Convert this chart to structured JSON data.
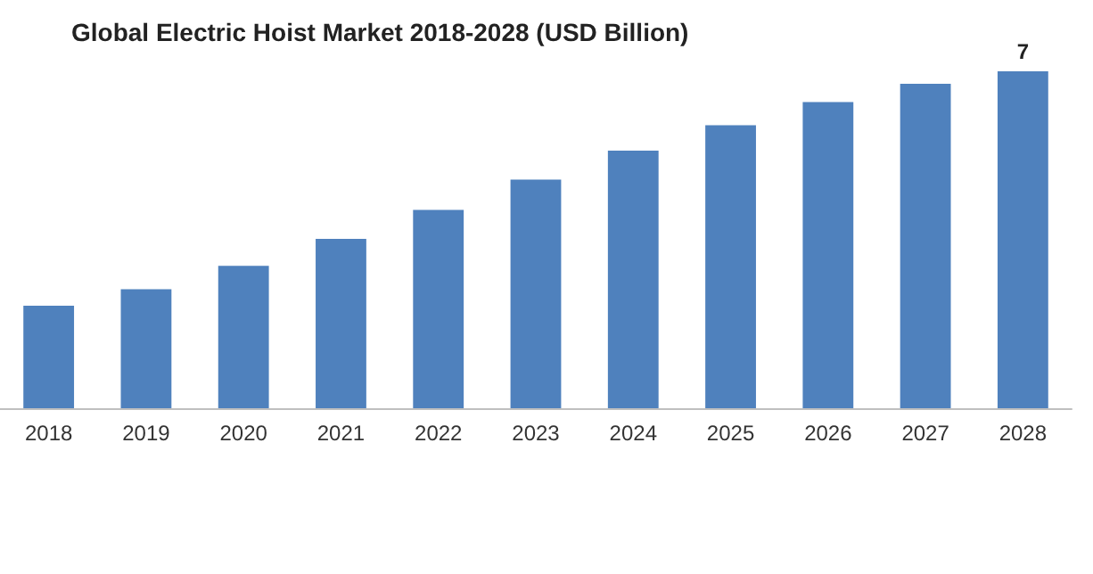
{
  "chart_data": {
    "type": "bar",
    "title": "Global Electric Hoist Market 2018-2028 (USD Billion)",
    "categories": [
      "2018",
      "2019",
      "2020",
      "2021",
      "2022",
      "2023",
      "2024",
      "2025",
      "2026",
      "2027",
      "2028"
    ],
    "values": [
      2.13,
      2.47,
      2.96,
      3.52,
      4.12,
      4.75,
      5.35,
      5.88,
      6.36,
      6.74,
      7
    ],
    "value_labels": [
      null,
      null,
      null,
      null,
      null,
      null,
      null,
      null,
      null,
      null,
      "7"
    ],
    "color": "#4f81bd"
  }
}
